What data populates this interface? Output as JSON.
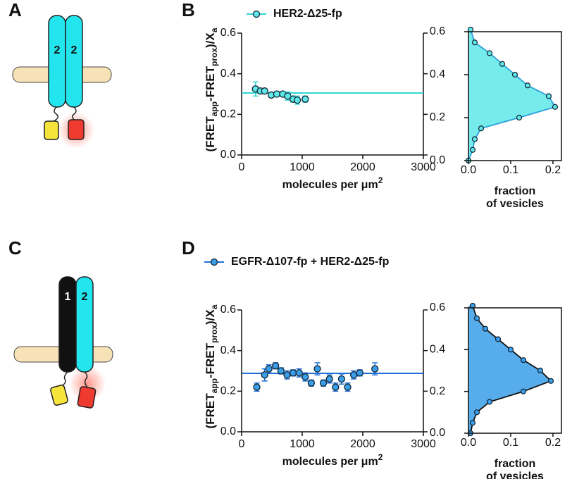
{
  "panels": {
    "letters": [
      "A",
      "B",
      "C",
      "D"
    ],
    "diagram_a": [
      "2",
      "2"
    ],
    "diagram_c": [
      "1",
      "2"
    ]
  },
  "chart_data": [
    {
      "type": "scatter",
      "ylabel": [
        "(FRET",
        "app",
        "-FRET",
        "prox",
        ")/X",
        "a"
      ],
      "xlabel": [
        "molecules per μm",
        "2"
      ],
      "xlim": [
        0,
        3000
      ],
      "xticks": [
        0,
        1000,
        2000,
        3000
      ],
      "ylim": [
        0,
        0.6
      ],
      "yticks": [
        {
          "value": 0,
          "label": "0.0"
        },
        0.2,
        0.4,
        0.6
      ],
      "series": [
        {
          "name": "HER2-Δ25-fp",
          "color": "#5ee8e8",
          "line_color": "#33d6d6",
          "x": [
            230,
            310,
            380,
            490,
            580,
            680,
            760,
            850,
            920,
            1050
          ],
          "values": [
            0.325,
            0.315,
            0.315,
            0.295,
            0.3,
            0.3,
            0.29,
            0.275,
            0.27,
            0.275
          ],
          "errors": [
            0.035,
            0.01,
            0.01,
            0.01,
            0.012,
            0.012,
            0.02,
            0.015,
            0.02,
            0.015
          ],
          "fit": 0.305
        }
      ]
    },
    {
      "type": "profile",
      "xlabel": [
        "fraction",
        "of vesicles"
      ],
      "xlim": [
        0,
        0.22
      ],
      "xticks": [
        {
          "value": 0,
          "label": "0.0"
        },
        0.1,
        0.2
      ],
      "ylim": [
        0,
        0.6
      ],
      "yticks": [
        {
          "value": 0,
          "label": "0.0"
        },
        0.2,
        0.4,
        0.6
      ],
      "series": [
        {
          "color": "#5ee8e8",
          "line_color": "#2a9fd8",
          "y": [
            0.61,
            0.55,
            0.5,
            0.45,
            0.4,
            0.35,
            0.3,
            0.25,
            0.2,
            0.15,
            0.1,
            0.05,
            0.0
          ],
          "x": [
            0.005,
            0.015,
            0.05,
            0.08,
            0.11,
            0.14,
            0.19,
            0.205,
            0.12,
            0.03,
            0.015,
            0.01,
            0.0
          ]
        }
      ]
    },
    {
      "type": "scatter",
      "ylabel": [
        "(FRET",
        "app",
        "-FRET",
        "prox",
        ")/X",
        "a"
      ],
      "xlabel": [
        "molecules per μm",
        "2"
      ],
      "xlim": [
        0,
        3000
      ],
      "xticks": [
        0,
        1000,
        2000,
        3000
      ],
      "ylim": [
        0,
        0.6
      ],
      "yticks": [
        {
          "value": 0,
          "label": "0.0"
        },
        0.2,
        0.4,
        0.6
      ],
      "series": [
        {
          "name": "EGFR-Δ107-fp + HER2-Δ25-fp",
          "color": "#3a9fe8",
          "line_color": "#1f6fd6",
          "x": [
            250,
            380,
            450,
            560,
            650,
            750,
            850,
            950,
            1050,
            1150,
            1250,
            1350,
            1450,
            1550,
            1650,
            1750,
            1850,
            1950,
            2200
          ],
          "values": [
            0.22,
            0.28,
            0.31,
            0.325,
            0.3,
            0.28,
            0.29,
            0.29,
            0.27,
            0.24,
            0.31,
            0.24,
            0.26,
            0.22,
            0.26,
            0.22,
            0.28,
            0.29,
            0.31
          ],
          "errors": [
            0.02,
            0.03,
            0.02,
            0.015,
            0.015,
            0.02,
            0.015,
            0.02,
            0.02,
            0.015,
            0.03,
            0.015,
            0.02,
            0.02,
            0.025,
            0.02,
            0.02,
            0.015,
            0.03
          ],
          "fit": 0.288
        }
      ]
    },
    {
      "type": "profile",
      "xlabel": [
        "fraction",
        "of vesicles"
      ],
      "xlim": [
        0,
        0.22
      ],
      "xticks": [
        {
          "value": 0,
          "label": "0.0"
        },
        0.1,
        0.2
      ],
      "ylim": [
        0,
        0.6
      ],
      "yticks": [
        {
          "value": 0,
          "label": "0.0"
        },
        0.2,
        0.4,
        0.6
      ],
      "series": [
        {
          "color": "#3a9fe8",
          "line_color": "#111111",
          "y": [
            0.61,
            0.55,
            0.5,
            0.45,
            0.4,
            0.35,
            0.3,
            0.25,
            0.2,
            0.15,
            0.1,
            0.05,
            0.0
          ],
          "x": [
            0.01,
            0.02,
            0.04,
            0.07,
            0.1,
            0.13,
            0.17,
            0.195,
            0.13,
            0.05,
            0.02,
            0.01,
            0.005
          ]
        }
      ]
    }
  ]
}
